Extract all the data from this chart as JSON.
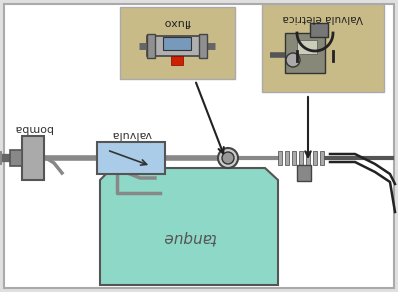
{
  "background_color": "#e0e0e0",
  "border_color": "#888888",
  "white_bg": "#ffffff",
  "tank_color": "#8ed8c8",
  "tank_border": "#555555",
  "valve_color": "#aacce8",
  "pipe_color": "#666666",
  "photo_bg1": "#c8bb88",
  "photo_bg2": "#c8bb88",
  "arrow_color": "#222222",
  "label_bomba": "bomba",
  "label_valvula": "valvula",
  "label_tanque": "tanque",
  "label_fluxo": "fluxo",
  "label_valvula_eletrica": "Valvula eletrica",
  "fig_width": 3.98,
  "fig_height": 2.92,
  "dpi": 100
}
